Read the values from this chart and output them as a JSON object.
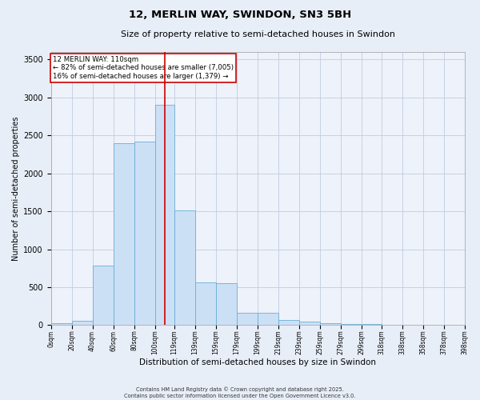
{
  "title": "12, MERLIN WAY, SWINDON, SN3 5BH",
  "subtitle": "Size of property relative to semi-detached houses in Swindon",
  "xlabel": "Distribution of semi-detached houses by size in Swindon",
  "ylabel": "Number of semi-detached properties",
  "annotation_line1": "12 MERLIN WAY: 110sqm",
  "annotation_line2": "← 82% of semi-detached houses are smaller (7,005)",
  "annotation_line3": "16% of semi-detached houses are larger (1,379) →",
  "footer_line1": "Contains HM Land Registry data © Crown copyright and database right 2025.",
  "footer_line2": "Contains public sector information licensed under the Open Government Licence v3.0.",
  "bar_left_edges": [
    0,
    20,
    40,
    60,
    80,
    100,
    119,
    139,
    159,
    179,
    199,
    219,
    239,
    259,
    279,
    299,
    318,
    338,
    358,
    378
  ],
  "bar_widths": [
    20,
    20,
    20,
    20,
    20,
    19,
    20,
    20,
    20,
    20,
    20,
    20,
    20,
    20,
    20,
    19,
    20,
    20,
    20,
    20
  ],
  "bar_heights": [
    20,
    55,
    780,
    2400,
    2420,
    2900,
    1510,
    560,
    555,
    165,
    162,
    72,
    42,
    22,
    18,
    12,
    8,
    5,
    5,
    3
  ],
  "bar_color": "#cce0f5",
  "bar_edge_color": "#6aaed6",
  "vline_x": 110,
  "vline_color": "#cc0000",
  "ylim": [
    0,
    3600
  ],
  "yticks": [
    0,
    500,
    1000,
    1500,
    2000,
    2500,
    3000,
    3500
  ],
  "xtick_labels": [
    "0sqm",
    "20sqm",
    "40sqm",
    "60sqm",
    "80sqm",
    "100sqm",
    "119sqm",
    "139sqm",
    "159sqm",
    "179sqm",
    "199sqm",
    "219sqm",
    "239sqm",
    "259sqm",
    "279sqm",
    "299sqm",
    "318sqm",
    "338sqm",
    "358sqm",
    "378sqm",
    "398sqm"
  ],
  "xtick_positions": [
    0,
    20,
    40,
    60,
    80,
    100,
    119,
    139,
    159,
    179,
    199,
    219,
    239,
    259,
    279,
    299,
    318,
    338,
    358,
    378,
    398
  ],
  "annotation_box_color": "#ffffff",
  "annotation_box_edge": "#cc0000",
  "bg_color": "#e8eef8",
  "plot_bg_color": "#eef2fa",
  "title_fontsize": 9.5,
  "subtitle_fontsize": 8.0,
  "ylabel_fontsize": 7.0,
  "xlabel_fontsize": 7.5,
  "ytick_fontsize": 7.0,
  "xtick_fontsize": 5.5,
  "annotation_fontsize": 6.2,
  "footer_fontsize": 4.8
}
